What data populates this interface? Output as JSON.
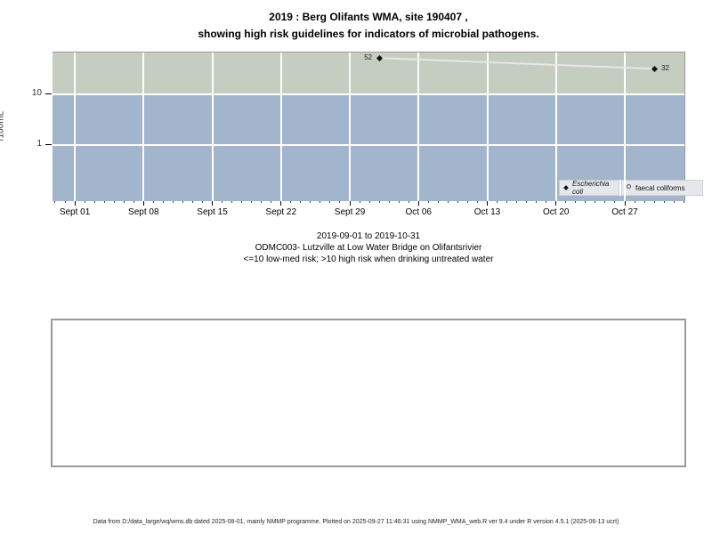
{
  "title": {
    "line1": "2019 : Berg Olifants WMA, site 190407 ,",
    "line2": "showing high risk guidelines for indicators of microbial pathogens."
  },
  "subtitle": {
    "line1": "2019-09-01 to 2019-10-31",
    "line2": "ODMC003- Lutzville at Low Water Bridge on Olifantsrivier",
    "line3": "<=10 low-med risk; >10 high risk when drinking untreated water"
  },
  "footer": {
    "text": "Data from D:/data_large/wq/wms.db dated 2025-08-01, mainly NMMP programme. Plotted on 2025-09-27 11:46:31 using NMMP_WMA_web.R ver 9.4 under R version 4.5.1 (2025-06-13 ucrt)"
  },
  "legend": [
    {
      "marker": "diamond",
      "label": "Escherichia coli"
    },
    {
      "marker": "open-circle",
      "label": "faecal coliforms"
    }
  ],
  "chart_data": {
    "type": "line",
    "title": "2019 : Berg Olifants WMA, site 190407 , showing high risk guidelines for indicators of microbial pathogens.",
    "ylabel": "/100mL",
    "y_scale": "log10",
    "y_domain": [
      0.0785,
      66.8
    ],
    "x_domain_days": [
      -2.27,
      62.07
    ],
    "x_epoch": "days since Sept 01",
    "grid": "white weekly verticals and guideline horizontals",
    "legend_position": "bottom-right-inside",
    "x_ticks": [
      {
        "day": 0,
        "label": "Sept 01"
      },
      {
        "day": 7,
        "label": "Sept 08"
      },
      {
        "day": 14,
        "label": "Sept 15"
      },
      {
        "day": 21,
        "label": "Sept 22"
      },
      {
        "day": 28,
        "label": "Sept 29"
      },
      {
        "day": 35,
        "label": "Oct 06"
      },
      {
        "day": 42,
        "label": "Oct 13"
      },
      {
        "day": 49,
        "label": "Oct 20"
      },
      {
        "day": 56,
        "label": "Oct 27"
      }
    ],
    "minor_tick_days": [
      -2,
      62
    ],
    "y_ticks": [
      {
        "value": 10,
        "label": "10"
      },
      {
        "value": 1,
        "label": "1"
      }
    ],
    "bands": [
      {
        "from": 10,
        "to": 66.8,
        "color": "#c4cdc0",
        "meaning": "high risk (>10)"
      },
      {
        "from": 0.0785,
        "to": 10,
        "color": "#a3b4cd",
        "meaning": "low-med risk (<=10)"
      }
    ],
    "series": [
      {
        "name": "Escherichia coli",
        "marker": "diamond",
        "line_color": "#e7e7e7",
        "points": [
          {
            "day": 31,
            "value": 52,
            "label": "52",
            "label_side": "left"
          },
          {
            "day": 59,
            "value": 32,
            "label": "32",
            "label_side": "right"
          }
        ]
      },
      {
        "name": "faecal coliforms",
        "marker": "open-circle",
        "points": []
      }
    ]
  }
}
